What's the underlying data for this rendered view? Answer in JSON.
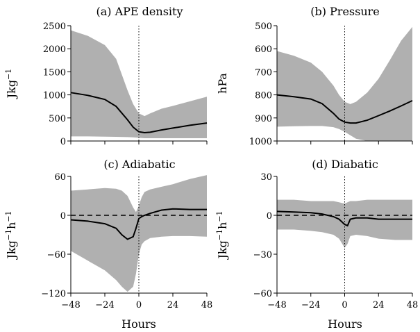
{
  "chart_data": [
    {
      "type": "area",
      "title": "(a) APE density",
      "ylabel": "Jkg$^{-1}$",
      "ylabel_text": "Jkg",
      "ylabel_sup": "−1",
      "xlabel": "",
      "xlim": [
        -48,
        48
      ],
      "ylim": [
        0,
        2500
      ],
      "inverted_y": false,
      "xticks": [
        -48,
        -24,
        0,
        24,
        48
      ],
      "xtick_labels": [
        "",
        "",
        "",
        "",
        ""
      ],
      "yticks": [
        0,
        500,
        1000,
        1500,
        2000,
        2500
      ],
      "ytick_labels": [
        "0",
        "500",
        "1000",
        "1500",
        "2000",
        "2500"
      ],
      "zero_line": false,
      "x": [
        -48,
        -36,
        -24,
        -16,
        -8,
        -4,
        0,
        4,
        8,
        16,
        24,
        36,
        48
      ],
      "series": [
        {
          "role": "upper",
          "values": [
            2400,
            2280,
            2080,
            1780,
            1100,
            800,
            600,
            540,
            600,
            700,
            760,
            860,
            960
          ]
        },
        {
          "role": "median",
          "values": [
            1050,
            990,
            900,
            750,
            460,
            300,
            200,
            180,
            190,
            240,
            280,
            340,
            390
          ]
        },
        {
          "role": "lower",
          "values": [
            100,
            100,
            95,
            90,
            85,
            80,
            70,
            60,
            60,
            60,
            60,
            60,
            60
          ]
        }
      ]
    },
    {
      "type": "area",
      "title": "(b) Pressure",
      "ylabel": "hPa",
      "ylabel_text": "hPa",
      "ylabel_sup": "",
      "xlabel": "",
      "xlim": [
        -48,
        48
      ],
      "ylim": [
        500,
        1000
      ],
      "inverted_y": true,
      "xticks": [
        -48,
        -24,
        0,
        24,
        48
      ],
      "xtick_labels": [
        "",
        "",
        "",
        "",
        ""
      ],
      "yticks": [
        500,
        600,
        700,
        800,
        900,
        1000
      ],
      "ytick_labels": [
        "500",
        "600",
        "700",
        "800",
        "900",
        "1000"
      ],
      "zero_line": false,
      "x": [
        -48,
        -36,
        -24,
        -16,
        -8,
        -4,
        0,
        4,
        8,
        16,
        24,
        32,
        40,
        48
      ],
      "series": [
        {
          "role": "upper",
          "values": [
            610,
            630,
            660,
            700,
            760,
            800,
            830,
            840,
            830,
            790,
            730,
            650,
            565,
            505
          ]
        },
        {
          "role": "median",
          "values": [
            800,
            808,
            818,
            838,
            880,
            905,
            918,
            922,
            922,
            910,
            890,
            870,
            848,
            825
          ]
        },
        {
          "role": "lower",
          "values": [
            938,
            936,
            935,
            935,
            940,
            948,
            960,
            975,
            990,
            1000,
            1000,
            1000,
            1000,
            1000
          ]
        }
      ]
    },
    {
      "type": "area",
      "title": "(c) Adiabatic",
      "ylabel": "Jkg$^{-1}$h$^{-1}$",
      "ylabel_text": "Jkg",
      "ylabel_sup": "−1",
      "ylabel_text2": "h",
      "ylabel_sup2": "−1",
      "xlabel": "Hours",
      "xlim": [
        -48,
        48
      ],
      "ylim": [
        -120,
        60
      ],
      "inverted_y": false,
      "xticks": [
        -48,
        -24,
        0,
        24,
        48
      ],
      "xtick_labels": [
        "−48",
        "−24",
        "0",
        "24",
        "48"
      ],
      "yticks": [
        -120,
        -60,
        0,
        60
      ],
      "ytick_labels": [
        "−120",
        "−60",
        "0",
        "60"
      ],
      "zero_line": true,
      "x": [
        -48,
        -36,
        -24,
        -16,
        -12,
        -8,
        -4,
        -2,
        0,
        2,
        4,
        8,
        16,
        24,
        36,
        48
      ],
      "series": [
        {
          "role": "upper",
          "values": [
            38,
            40,
            42,
            41,
            38,
            30,
            12,
            5,
            15,
            28,
            36,
            40,
            44,
            48,
            56,
            62
          ]
        },
        {
          "role": "median",
          "values": [
            -7,
            -9,
            -13,
            -20,
            -30,
            -37,
            -33,
            -20,
            -5,
            -2,
            0,
            3,
            8,
            10,
            9,
            9
          ]
        },
        {
          "role": "lower",
          "values": [
            -55,
            -70,
            -85,
            -100,
            -110,
            -118,
            -110,
            -90,
            -60,
            -45,
            -40,
            -35,
            -33,
            -32,
            -32,
            -33
          ]
        }
      ]
    },
    {
      "type": "area",
      "title": "(d) Diabatic",
      "ylabel": "Jkg$^{-1}$h$^{-1}$",
      "ylabel_text": "Jkg",
      "ylabel_sup": "−1",
      "ylabel_text2": "h",
      "ylabel_sup2": "−1",
      "xlabel": "Hours",
      "xlim": [
        -48,
        48
      ],
      "ylim": [
        -60,
        30
      ],
      "inverted_y": false,
      "xticks": [
        -48,
        -24,
        0,
        24,
        48
      ],
      "xtick_labels": [
        "−48",
        "−24",
        "0",
        "24",
        "48"
      ],
      "yticks": [
        -60,
        -30,
        0,
        30
      ],
      "ytick_labels": [
        "−60",
        "−30",
        "0",
        "30"
      ],
      "zero_line": true,
      "x": [
        -48,
        -36,
        -24,
        -16,
        -8,
        -4,
        0,
        2,
        4,
        8,
        16,
        24,
        36,
        48
      ],
      "series": [
        {
          "role": "upper",
          "values": [
            12,
            12,
            11,
            11,
            11,
            10,
            9,
            10,
            11,
            11,
            12,
            12,
            12,
            12
          ]
        },
        {
          "role": "median",
          "values": [
            3,
            2.5,
            2,
            1,
            -1,
            -3,
            -7,
            -8,
            -3,
            -2,
            -2,
            -3,
            -3,
            -3
          ]
        },
        {
          "role": "lower",
          "values": [
            -11,
            -11,
            -12,
            -13,
            -15,
            -18,
            -25,
            -22,
            -16,
            -15,
            -16,
            -18,
            -19,
            -19
          ]
        }
      ]
    }
  ]
}
